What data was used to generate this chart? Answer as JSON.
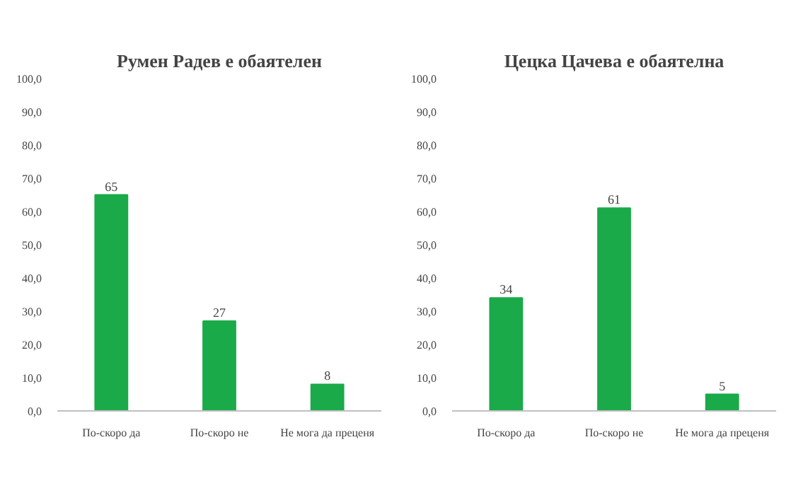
{
  "chart_data": [
    {
      "type": "bar",
      "title": "Румен Радев е обаятелен",
      "categories": [
        "По-скоро да",
        "По-скоро не",
        "Не мога да преценя"
      ],
      "values": [
        65,
        27,
        8
      ],
      "color": "#1aaa4a",
      "ylim": [
        0,
        100
      ],
      "yticks": [
        {
          "value": 0,
          "label": "0,0"
        },
        {
          "value": 10,
          "label": "10,0"
        },
        {
          "value": 20,
          "label": "20,0"
        },
        {
          "value": 30,
          "label": "30,0"
        },
        {
          "value": 40,
          "label": "40,0"
        },
        {
          "value": 50,
          "label": "50,0"
        },
        {
          "value": 60,
          "label": "60,0"
        },
        {
          "value": 70,
          "label": "70,0"
        },
        {
          "value": 80,
          "label": "80,0"
        },
        {
          "value": 90,
          "label": "90,0"
        },
        {
          "value": 100,
          "label": "100,0"
        }
      ],
      "data_labels": true,
      "grid": false
    },
    {
      "type": "bar",
      "title": "Цецка Цачева е обаятелна",
      "categories": [
        "По-скоро да",
        "По-скоро не",
        "Не мога да преценя"
      ],
      "values": [
        34,
        61,
        5
      ],
      "color": "#1aaa4a",
      "ylim": [
        0,
        100
      ],
      "yticks": [
        {
          "value": 0,
          "label": "0,0"
        },
        {
          "value": 10,
          "label": "10,0"
        },
        {
          "value": 20,
          "label": "20,0"
        },
        {
          "value": 30,
          "label": "30,0"
        },
        {
          "value": 40,
          "label": "40,0"
        },
        {
          "value": 50,
          "label": "50,0"
        },
        {
          "value": 60,
          "label": "60,0"
        },
        {
          "value": 70,
          "label": "70,0"
        },
        {
          "value": 80,
          "label": "80,0"
        },
        {
          "value": 90,
          "label": "90,0"
        },
        {
          "value": 100,
          "label": "100,0"
        }
      ],
      "data_labels": true,
      "grid": false
    }
  ]
}
